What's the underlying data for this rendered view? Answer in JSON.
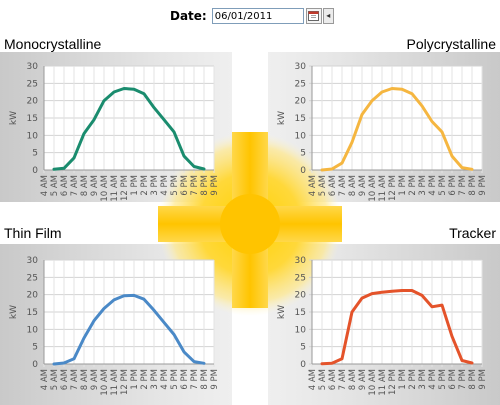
{
  "date_control": {
    "label": "Date:",
    "value": "06/01/2011"
  },
  "chart_data": [
    {
      "type": "line",
      "title": "Monocrystalline",
      "ylabel": "kW",
      "ylim": [
        0,
        30
      ],
      "yticks": [
        0,
        5,
        10,
        15,
        20,
        25,
        30
      ],
      "x": [
        "4 AM",
        "5 AM",
        "6 AM",
        "7 AM",
        "8 AM",
        "9 AM",
        "10 AM",
        "11 AM",
        "12 PM",
        "1 PM",
        "2 PM",
        "3 PM",
        "4 PM",
        "5 PM",
        "6 PM",
        "7 PM",
        "8 PM",
        "9 PM"
      ],
      "series": [
        {
          "color": "#1a8c6e",
          "values": [
            null,
            0.2,
            0.5,
            3.5,
            10.5,
            14.5,
            20,
            22.5,
            23.5,
            23.3,
            22,
            18,
            14.5,
            11,
            4,
            1,
            0.3,
            null
          ]
        }
      ]
    },
    {
      "type": "line",
      "title": "Polycrystalline",
      "ylabel": "kW",
      "ylim": [
        0,
        30
      ],
      "yticks": [
        0,
        5,
        10,
        15,
        20,
        25,
        30
      ],
      "x": [
        "4 AM",
        "5 AM",
        "6 AM",
        "7 AM",
        "8 AM",
        "9 AM",
        "10 AM",
        "11 AM",
        "12 PM",
        "1 PM",
        "2 PM",
        "3 PM",
        "4 PM",
        "5 PM",
        "6 PM",
        "7 PM",
        "8 PM",
        "9 PM"
      ],
      "series": [
        {
          "color": "#f5b640",
          "values": [
            null,
            0,
            0.3,
            2,
            8,
            16,
            20,
            22.5,
            23.5,
            23.3,
            22,
            18.5,
            14,
            11,
            4,
            0.7,
            0.2,
            null
          ]
        }
      ]
    },
    {
      "type": "line",
      "title": "Thin Film",
      "ylabel": "kW",
      "ylim": [
        0,
        30
      ],
      "yticks": [
        0,
        5,
        10,
        15,
        20,
        25,
        30
      ],
      "x": [
        "4 AM",
        "5 AM",
        "6 AM",
        "7 AM",
        "8 AM",
        "9 AM",
        "10 AM",
        "11 AM",
        "12 PM",
        "1 PM",
        "2 PM",
        "3 PM",
        "4 PM",
        "5 PM",
        "6 PM",
        "7 PM",
        "8 PM",
        "9 PM"
      ],
      "series": [
        {
          "color": "#4a89c7",
          "values": [
            null,
            0,
            0.3,
            1.5,
            7.5,
            12.5,
            16,
            18.5,
            19.7,
            19.8,
            18.7,
            15.5,
            12,
            8.5,
            3.5,
            0.7,
            0.2,
            null
          ]
        }
      ]
    },
    {
      "type": "line",
      "title": "Tracker",
      "ylabel": "kW",
      "ylim": [
        0,
        30
      ],
      "yticks": [
        0,
        5,
        10,
        15,
        20,
        25,
        30
      ],
      "x": [
        "4 AM",
        "5 AM",
        "6 AM",
        "7 AM",
        "8 AM",
        "9 AM",
        "10 AM",
        "11 AM",
        "12 PM",
        "1 PM",
        "2 PM",
        "3 PM",
        "4 PM",
        "5 PM",
        "6 PM",
        "7 PM",
        "8 PM",
        "9 PM"
      ],
      "series": [
        {
          "color": "#e4532a",
          "values": [
            null,
            0.1,
            0.2,
            1.5,
            15,
            19,
            20.3,
            20.7,
            21,
            21.2,
            21.2,
            19.8,
            16.5,
            17,
            8,
            1,
            0.3,
            null
          ]
        }
      ]
    }
  ]
}
